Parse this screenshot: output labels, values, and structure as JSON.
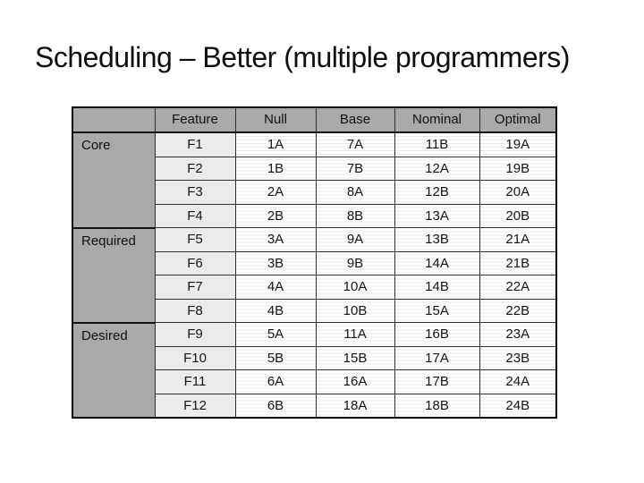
{
  "slide": {
    "title": "Scheduling – Better (multiple programmers)"
  },
  "table": {
    "corner": "",
    "columns": [
      "Feature",
      "Null",
      "Base",
      "Nominal",
      "Optimal"
    ],
    "groups": [
      {
        "label": "Core",
        "rows": [
          {
            "feature": "F1",
            "cells": [
              "1A",
              "7A",
              "11B",
              "19A"
            ]
          },
          {
            "feature": "F2",
            "cells": [
              "1B",
              "7B",
              "12A",
              "19B"
            ]
          },
          {
            "feature": "F3",
            "cells": [
              "2A",
              "8A",
              "12B",
              "20A"
            ]
          },
          {
            "feature": "F4",
            "cells": [
              "2B",
              "8B",
              "13A",
              "20B"
            ]
          }
        ]
      },
      {
        "label": "Required",
        "rows": [
          {
            "feature": "F5",
            "cells": [
              "3A",
              "9A",
              "13B",
              "21A"
            ]
          },
          {
            "feature": "F6",
            "cells": [
              "3B",
              "9B",
              "14A",
              "21B"
            ]
          },
          {
            "feature": "F7",
            "cells": [
              "4A",
              "10A",
              "14B",
              "22A"
            ]
          },
          {
            "feature": "F8",
            "cells": [
              "4B",
              "10B",
              "15A",
              "22B"
            ]
          }
        ]
      },
      {
        "label": "Desired",
        "rows": [
          {
            "feature": "F9",
            "cells": [
              "5A",
              "11A",
              "16B",
              "23A"
            ]
          },
          {
            "feature": "F10",
            "cells": [
              "5B",
              "15B",
              "17A",
              "23B"
            ]
          },
          {
            "feature": "F11",
            "cells": [
              "6A",
              "16A",
              "17B",
              "24A"
            ]
          },
          {
            "feature": "F12",
            "cells": [
              "6B",
              "18A",
              "18B",
              "24B"
            ]
          }
        ]
      }
    ]
  },
  "colors": {
    "background": "#ffffff",
    "header_bg": "#a9a9a9",
    "group_bg": "#a9a9a9",
    "feature_bg": "#ebebeb",
    "data_stripe": "#e8e8e8",
    "border": "#2e2e2e",
    "outer_border": "#000000",
    "text": "#151515"
  }
}
